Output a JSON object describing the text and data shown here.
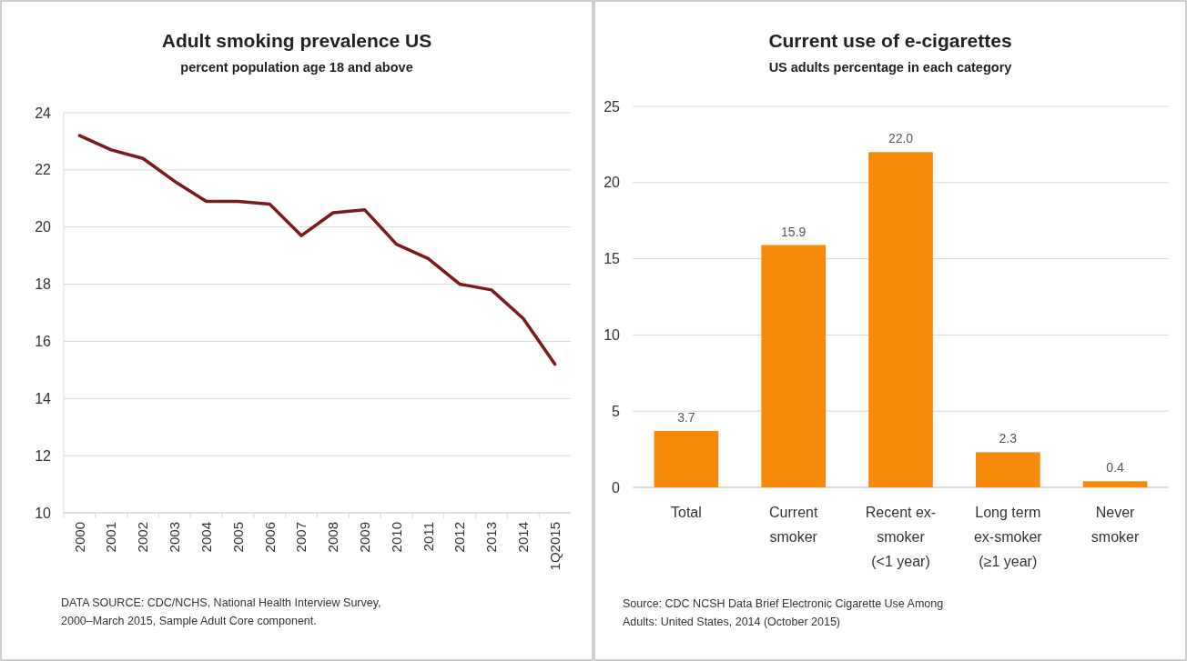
{
  "chart_data": [
    {
      "type": "line",
      "title": "Adult smoking prevalence US",
      "subtitle": "percent population age 18 and above",
      "categories": [
        "2000",
        "2001",
        "2002",
        "2003",
        "2004",
        "2005",
        "2006",
        "2007",
        "2008",
        "2009",
        "2010",
        "2011",
        "2012",
        "2013",
        "2014",
        "1Q2015"
      ],
      "series": [
        {
          "color": "#7b1a1c",
          "values": [
            23.2,
            22.7,
            22.4,
            21.6,
            20.9,
            20.9,
            20.8,
            19.7,
            20.5,
            20.6,
            19.4,
            18.9,
            18.0,
            17.8,
            16.8,
            15.2
          ]
        }
      ],
      "ylim": [
        10,
        24
      ],
      "yticks": [
        10,
        12,
        14,
        16,
        18,
        20,
        22,
        24
      ],
      "grid": "y",
      "marker": "none",
      "annotations": [
        "DATA SOURCE: CDC/NCHS, National Health Interview Survey,\n2000–March 2015, Sample Adult Core component."
      ]
    },
    {
      "type": "bar",
      "title": "Current use of e-cigarettes",
      "subtitle": "US adults percentage in each category",
      "categories": [
        "Total",
        "Current\nsmoker",
        "Recent ex-\nsmoker\n(<1 year)",
        "Long term\nex-smoker\n(≥1 year)",
        "Never\nsmoker"
      ],
      "values": [
        3.7,
        15.9,
        22.0,
        2.3,
        0.4
      ],
      "value_labels": [
        "3.7",
        "15.9",
        "22.0",
        "2.3",
        "0.4"
      ],
      "color": "#f58a0b",
      "ylim": [
        0,
        25
      ],
      "yticks": [
        0,
        5,
        10,
        15,
        20,
        25
      ],
      "grid": "y",
      "annotations": [
        "Source: CDC NCSH Data Brief Electronic Cigarette Use Among\nAdults: United States, 2014 (October 2015)"
      ]
    }
  ]
}
